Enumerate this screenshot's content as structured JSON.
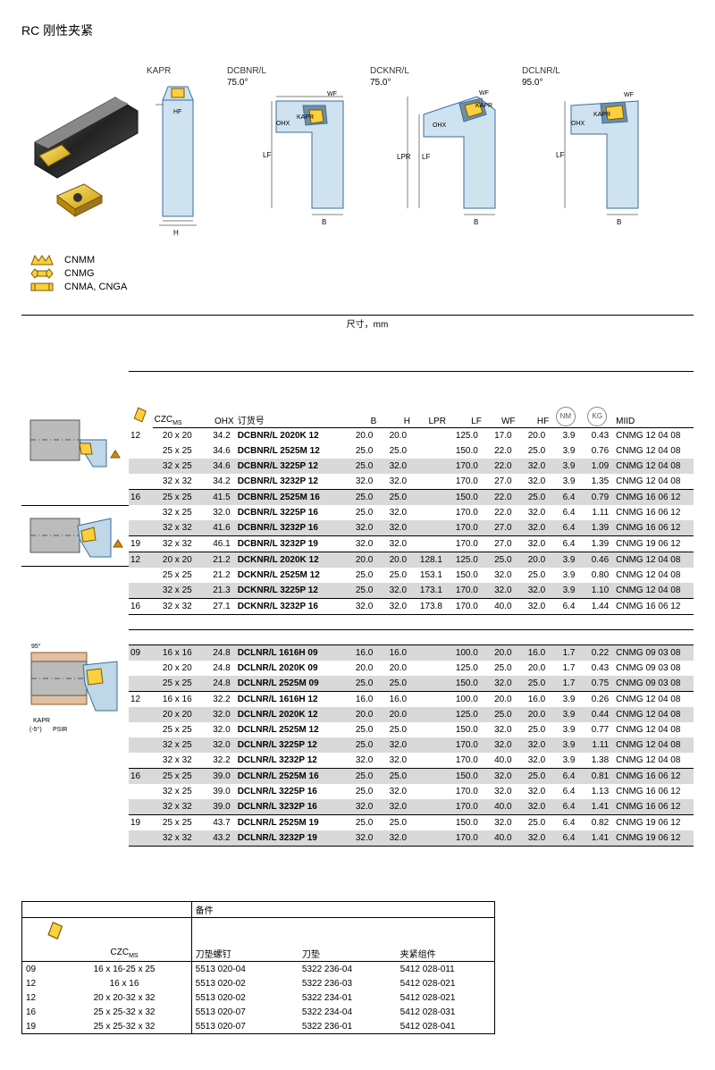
{
  "title": "RC 刚性夹紧",
  "diagrams": {
    "kapr": "KAPR",
    "items": [
      {
        "name": "DCBNR/L",
        "angle": "75.0°"
      },
      {
        "name": "DCKNR/L",
        "angle": "75.0°"
      },
      {
        "name": "DCLNR/L",
        "angle": "95.0°"
      }
    ],
    "dims": {
      "hf": "HF",
      "h": "H",
      "wf": "WF",
      "ohx": "OHX",
      "kapr": "KAPR",
      "lf": "LF",
      "b": "B",
      "lpr": "LPR"
    }
  },
  "legend": [
    {
      "label": "CNMM"
    },
    {
      "label": "CNMG"
    },
    {
      "label": "CNMA, CNGA"
    }
  ],
  "table": {
    "dim_header": "尺寸，mm",
    "cols": {
      "czc": "CZC",
      "ms": "MS",
      "ohx": "OHX",
      "order": "订货号",
      "b": "B",
      "h": "H",
      "lpr": "LPR",
      "lf": "LF",
      "wf": "WF",
      "hf": "HF",
      "nm": "NM",
      "kg": "KG",
      "miid": "MIID"
    },
    "rows": [
      {
        "g": "A",
        "s": 0,
        "sep": 0,
        "ic": "12",
        "czc": "20 x 20",
        "ohx": "34.2",
        "order": "DCBNR/L 2020K 12",
        "b": "20.0",
        "h": "20.0",
        "lpr": "",
        "lf": "125.0",
        "wf": "17.0",
        "hf": "20.0",
        "nm": "3.9",
        "kg": "0.43",
        "miid": "CNMG 12 04 08"
      },
      {
        "g": "A",
        "s": 0,
        "sep": 0,
        "ic": "",
        "czc": "25 x 25",
        "ohx": "34.6",
        "order": "DCBNR/L 2525M 12",
        "b": "25.0",
        "h": "25.0",
        "lpr": "",
        "lf": "150.0",
        "wf": "22.0",
        "hf": "25.0",
        "nm": "3.9",
        "kg": "0.76",
        "miid": "CNMG 12 04 08"
      },
      {
        "g": "A",
        "s": 1,
        "sep": 0,
        "ic": "",
        "czc": "32 x 25",
        "ohx": "34.6",
        "order": "DCBNR/L 3225P 12",
        "b": "25.0",
        "h": "32.0",
        "lpr": "",
        "lf": "170.0",
        "wf": "22.0",
        "hf": "32.0",
        "nm": "3.9",
        "kg": "1.09",
        "miid": "CNMG 12 04 08"
      },
      {
        "g": "A",
        "s": 0,
        "sep": 0,
        "ic": "",
        "czc": "32 x 32",
        "ohx": "34.2",
        "order": "DCBNR/L 3232P 12",
        "b": "32.0",
        "h": "32.0",
        "lpr": "",
        "lf": "170.0",
        "wf": "27.0",
        "hf": "32.0",
        "nm": "3.9",
        "kg": "1.35",
        "miid": "CNMG 12 04 08"
      },
      {
        "g": "A",
        "s": 1,
        "sep": 1,
        "ic": "16",
        "czc": "25 x 25",
        "ohx": "41.5",
        "order": "DCBNR/L 2525M 16",
        "b": "25.0",
        "h": "25.0",
        "lpr": "",
        "lf": "150.0",
        "wf": "22.0",
        "hf": "25.0",
        "nm": "6.4",
        "kg": "0.79",
        "miid": "CNMG 16 06 12"
      },
      {
        "g": "A",
        "s": 0,
        "sep": 0,
        "ic": "",
        "czc": "32 x 25",
        "ohx": "32.0",
        "order": "DCBNR/L 3225P 16",
        "b": "25.0",
        "h": "32.0",
        "lpr": "",
        "lf": "170.0",
        "wf": "22.0",
        "hf": "32.0",
        "nm": "6.4",
        "kg": "1.11",
        "miid": "CNMG 16 06 12"
      },
      {
        "g": "A",
        "s": 1,
        "sep": 0,
        "ic": "",
        "czc": "32 x 32",
        "ohx": "41.6",
        "order": "DCBNR/L 3232P 16",
        "b": "32.0",
        "h": "32.0",
        "lpr": "",
        "lf": "170.0",
        "wf": "27.0",
        "hf": "32.0",
        "nm": "6.4",
        "kg": "1.39",
        "miid": "CNMG 16 06 12"
      },
      {
        "g": "A",
        "s": 0,
        "sep": 1,
        "ic": "19",
        "czc": "32 x 32",
        "ohx": "46.1",
        "order": "DCBNR/L 3232P 19",
        "b": "32.0",
        "h": "32.0",
        "lpr": "",
        "lf": "170.0",
        "wf": "27.0",
        "hf": "32.0",
        "nm": "6.4",
        "kg": "1.39",
        "miid": "CNMG 19 06 12"
      },
      {
        "g": "B",
        "s": 1,
        "sep": 1,
        "ic": "12",
        "czc": "20 x 20",
        "ohx": "21.2",
        "order": "DCKNR/L 2020K 12",
        "b": "20.0",
        "h": "20.0",
        "lpr": "128.1",
        "lf": "125.0",
        "wf": "25.0",
        "hf": "20.0",
        "nm": "3.9",
        "kg": "0.46",
        "miid": "CNMG 12 04 08"
      },
      {
        "g": "B",
        "s": 0,
        "sep": 0,
        "ic": "",
        "czc": "25 x 25",
        "ohx": "21.2",
        "order": "DCKNR/L 2525M 12",
        "b": "25.0",
        "h": "25.0",
        "lpr": "153.1",
        "lf": "150.0",
        "wf": "32.0",
        "hf": "25.0",
        "nm": "3.9",
        "kg": "0.80",
        "miid": "CNMG 12 04 08"
      },
      {
        "g": "B",
        "s": 1,
        "sep": 0,
        "ic": "",
        "czc": "32 x 25",
        "ohx": "21.3",
        "order": "DCKNR/L 3225P 12",
        "b": "25.0",
        "h": "32.0",
        "lpr": "173.1",
        "lf": "170.0",
        "wf": "32.0",
        "hf": "32.0",
        "nm": "3.9",
        "kg": "1.10",
        "miid": "CNMG 12 04 08"
      },
      {
        "g": "B",
        "s": 0,
        "sep": 1,
        "ic": "16",
        "czc": "32 x 32",
        "ohx": "27.1",
        "order": "DCKNR/L 3232P 16",
        "b": "32.0",
        "h": "32.0",
        "lpr": "173.8",
        "lf": "170.0",
        "wf": "40.0",
        "hf": "32.0",
        "nm": "6.4",
        "kg": "1.44",
        "miid": "CNMG 16 06 12"
      },
      {
        "g": "C",
        "s": 1,
        "sep": 0,
        "ic": "09",
        "czc": "16 x 16",
        "ohx": "24.8",
        "order": "DCLNR/L 1616H 09",
        "b": "16.0",
        "h": "16.0",
        "lpr": "",
        "lf": "100.0",
        "wf": "20.0",
        "hf": "16.0",
        "nm": "1.7",
        "kg": "0.22",
        "miid": "CNMG 09 03 08"
      },
      {
        "g": "C",
        "s": 0,
        "sep": 0,
        "ic": "",
        "czc": "20 x 20",
        "ohx": "24.8",
        "order": "DCLNR/L 2020K 09",
        "b": "20.0",
        "h": "20.0",
        "lpr": "",
        "lf": "125.0",
        "wf": "25.0",
        "hf": "20.0",
        "nm": "1.7",
        "kg": "0.43",
        "miid": "CNMG 09 03 08"
      },
      {
        "g": "C",
        "s": 1,
        "sep": 0,
        "ic": "",
        "czc": "25 x 25",
        "ohx": "24.8",
        "order": "DCLNR/L 2525M 09",
        "b": "25.0",
        "h": "25.0",
        "lpr": "",
        "lf": "150.0",
        "wf": "32.0",
        "hf": "25.0",
        "nm": "1.7",
        "kg": "0.75",
        "miid": "CNMG 09 03 08"
      },
      {
        "g": "C",
        "s": 0,
        "sep": 1,
        "ic": "12",
        "czc": "16 x 16",
        "ohx": "32.2",
        "order": "DCLNR/L 1616H 12",
        "b": "16.0",
        "h": "16.0",
        "lpr": "",
        "lf": "100.0",
        "wf": "20.0",
        "hf": "16.0",
        "nm": "3.9",
        "kg": "0.26",
        "miid": "CNMG 12 04 08"
      },
      {
        "g": "C",
        "s": 1,
        "sep": 0,
        "ic": "",
        "czc": "20 x 20",
        "ohx": "32.0",
        "order": "DCLNR/L 2020K 12",
        "b": "20.0",
        "h": "20.0",
        "lpr": "",
        "lf": "125.0",
        "wf": "25.0",
        "hf": "20.0",
        "nm": "3.9",
        "kg": "0.44",
        "miid": "CNMG 12 04 08"
      },
      {
        "g": "C",
        "s": 0,
        "sep": 0,
        "ic": "",
        "czc": "25 x 25",
        "ohx": "32.0",
        "order": "DCLNR/L 2525M 12",
        "b": "25.0",
        "h": "25.0",
        "lpr": "",
        "lf": "150.0",
        "wf": "32.0",
        "hf": "25.0",
        "nm": "3.9",
        "kg": "0.77",
        "miid": "CNMG 12 04 08"
      },
      {
        "g": "C",
        "s": 1,
        "sep": 0,
        "ic": "",
        "czc": "32 x 25",
        "ohx": "32.0",
        "order": "DCLNR/L 3225P 12",
        "b": "25.0",
        "h": "32.0",
        "lpr": "",
        "lf": "170.0",
        "wf": "32.0",
        "hf": "32.0",
        "nm": "3.9",
        "kg": "1.11",
        "miid": "CNMG 12 04 08"
      },
      {
        "g": "C",
        "s": 0,
        "sep": 0,
        "ic": "",
        "czc": "32 x 32",
        "ohx": "32.2",
        "order": "DCLNR/L 3232P 12",
        "b": "32.0",
        "h": "32.0",
        "lpr": "",
        "lf": "170.0",
        "wf": "40.0",
        "hf": "32.0",
        "nm": "3.9",
        "kg": "1.38",
        "miid": "CNMG 12 04 08"
      },
      {
        "g": "C",
        "s": 1,
        "sep": 1,
        "ic": "16",
        "czc": "25 x 25",
        "ohx": "39.0",
        "order": "DCLNR/L 2525M 16",
        "b": "25.0",
        "h": "25.0",
        "lpr": "",
        "lf": "150.0",
        "wf": "32.0",
        "hf": "25.0",
        "nm": "6.4",
        "kg": "0.81",
        "miid": "CNMG 16 06 12"
      },
      {
        "g": "C",
        "s": 0,
        "sep": 0,
        "ic": "",
        "czc": "32 x 25",
        "ohx": "39.0",
        "order": "DCLNR/L 3225P 16",
        "b": "25.0",
        "h": "32.0",
        "lpr": "",
        "lf": "170.0",
        "wf": "32.0",
        "hf": "32.0",
        "nm": "6.4",
        "kg": "1.13",
        "miid": "CNMG 16 06 12"
      },
      {
        "g": "C",
        "s": 1,
        "sep": 0,
        "ic": "",
        "czc": "32 x 32",
        "ohx": "39.0",
        "order": "DCLNR/L 3232P 16",
        "b": "32.0",
        "h": "32.0",
        "lpr": "",
        "lf": "170.0",
        "wf": "40.0",
        "hf": "32.0",
        "nm": "6.4",
        "kg": "1.41",
        "miid": "CNMG 16 06 12"
      },
      {
        "g": "C",
        "s": 0,
        "sep": 1,
        "ic": "19",
        "czc": "25 x 25",
        "ohx": "43.7",
        "order": "DCLNR/L 2525M 19",
        "b": "25.0",
        "h": "25.0",
        "lpr": "",
        "lf": "150.0",
        "wf": "32.0",
        "hf": "25.0",
        "nm": "6.4",
        "kg": "0.82",
        "miid": "CNMG 19 06 12"
      },
      {
        "g": "C",
        "s": 1,
        "sep": 0,
        "ic": "",
        "czc": "32 x 32",
        "ohx": "43.2",
        "order": "DCLNR/L 3232P 19",
        "b": "32.0",
        "h": "32.0",
        "lpr": "",
        "lf": "170.0",
        "wf": "40.0",
        "hf": "32.0",
        "nm": "6.4",
        "kg": "1.41",
        "miid": "CNMG 19 06 12"
      }
    ]
  },
  "spare": {
    "header": "备件",
    "cols": {
      "czc": "CZC",
      "ms": "MS",
      "screw": "刀垫螺钉",
      "shim": "刀垫",
      "clamp": "夹紧组件"
    },
    "rows": [
      {
        "ic": "09",
        "czc": "16 x 16-25 x 25",
        "screw": "5513 020-04",
        "shim": "5322 236-04",
        "clamp": "5412 028-011"
      },
      {
        "ic": "12",
        "czc": "16 x 16",
        "screw": "5513 020-02",
        "shim": "5322 236-03",
        "clamp": "5412 028-021"
      },
      {
        "ic": "12",
        "czc": "20 x 20-32 x 32",
        "screw": "5513 020-02",
        "shim": "5322 234-01",
        "clamp": "5412 028-021"
      },
      {
        "ic": "16",
        "czc": "25 x 25-32 x 32",
        "screw": "5513 020-07",
        "shim": "5322 234-04",
        "clamp": "5412 028-031"
      },
      {
        "ic": "19",
        "czc": "25 x 25-32 x 32",
        "screw": "5513 020-07",
        "shim": "5322 236-01",
        "clamp": "5412 028-041"
      }
    ]
  },
  "style": {
    "shade": "#d9d9d9",
    "line": "#000000",
    "insertFill": "#fccf3e",
    "insertStroke": "#7a5a00"
  }
}
